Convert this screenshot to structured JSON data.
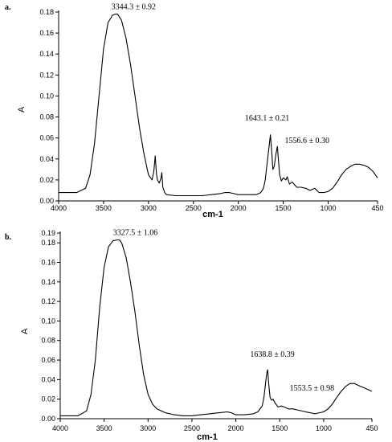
{
  "chart_data": [
    {
      "type": "line",
      "panel_label": "a.",
      "xlabel": "cm-1",
      "ylabel": "A",
      "xlim": [
        4000,
        450
      ],
      "ylim": [
        0,
        0.18
      ],
      "x_reversed": true,
      "grid": false,
      "xticks": [
        "4000",
        "3500",
        "3000",
        "2500",
        "2000",
        "1500",
        "1000",
        "450"
      ],
      "xtick_values": [
        4000,
        3500,
        3000,
        2500,
        2000,
        1500,
        1000,
        450
      ],
      "yticks": [
        "0.00",
        "0.02",
        "0.04",
        "0.06",
        "0.08",
        "0.10",
        "0.12",
        "0.14",
        "0.16",
        "0.18"
      ],
      "ytick_values": [
        0,
        0.02,
        0.04,
        0.06,
        0.08,
        0.1,
        0.12,
        0.14,
        0.16,
        0.18
      ],
      "annotations": [
        {
          "text": "3344.3 ± 0.92",
          "x": 3344.3,
          "y": 0.178
        },
        {
          "text": "1643.1 ± 0.21",
          "x": 1643.1,
          "y": 0.063
        },
        {
          "text": "1556.6 ± 0.30",
          "x": 1556.6,
          "y": 0.052
        }
      ],
      "series": [
        {
          "x": [
            4000,
            3800,
            3700,
            3650,
            3600,
            3550,
            3500,
            3450,
            3400,
            3370,
            3344,
            3300,
            3250,
            3200,
            3150,
            3100,
            3050,
            3000,
            2960,
            2940,
            2925,
            2910,
            2900,
            2880,
            2860,
            2852,
            2840,
            2820,
            2800,
            2700,
            2600,
            2500,
            2400,
            2300,
            2200,
            2150,
            2100,
            2050,
            2000,
            1900,
            1800,
            1750,
            1720,
            1700,
            1680,
            1660,
            1643,
            1630,
            1615,
            1600,
            1580,
            1565,
            1556,
            1540,
            1520,
            1500,
            1470,
            1455,
            1430,
            1400,
            1350,
            1300,
            1250,
            1200,
            1150,
            1100,
            1050,
            1000,
            950,
            900,
            850,
            800,
            750,
            700,
            650,
            600,
            550,
            500,
            450
          ],
          "y": [
            0.008,
            0.008,
            0.012,
            0.025,
            0.055,
            0.1,
            0.145,
            0.17,
            0.177,
            0.178,
            0.178,
            0.172,
            0.155,
            0.13,
            0.1,
            0.07,
            0.045,
            0.025,
            0.02,
            0.028,
            0.043,
            0.025,
            0.02,
            0.017,
            0.022,
            0.027,
            0.013,
            0.008,
            0.006,
            0.005,
            0.005,
            0.005,
            0.005,
            0.006,
            0.007,
            0.008,
            0.008,
            0.007,
            0.006,
            0.006,
            0.006,
            0.008,
            0.012,
            0.02,
            0.035,
            0.05,
            0.063,
            0.05,
            0.03,
            0.033,
            0.045,
            0.052,
            0.042,
            0.025,
            0.019,
            0.022,
            0.02,
            0.023,
            0.016,
            0.018,
            0.013,
            0.013,
            0.012,
            0.01,
            0.012,
            0.008,
            0.008,
            0.009,
            0.012,
            0.018,
            0.025,
            0.03,
            0.033,
            0.035,
            0.035,
            0.034,
            0.032,
            0.028,
            0.022
          ]
        }
      ]
    },
    {
      "type": "line",
      "panel_label": "b.",
      "xlabel": "cm-1",
      "ylabel": "A",
      "xlim": [
        4000,
        450
      ],
      "ylim": [
        0,
        0.19
      ],
      "x_reversed": true,
      "grid": false,
      "xticks": [
        "4000",
        "3500",
        "3000",
        "2500",
        "2000",
        "1500",
        "1000",
        "450"
      ],
      "xtick_values": [
        4000,
        3500,
        3000,
        2500,
        2000,
        1500,
        1000,
        450
      ],
      "yticks": [
        "0.00",
        "0.02",
        "0.04",
        "0.06",
        "0.08",
        "0.10",
        "0.12",
        "0.14",
        "0.16",
        "0.18",
        "0.19"
      ],
      "ytick_values": [
        0,
        0.02,
        0.04,
        0.06,
        0.08,
        0.1,
        0.12,
        0.14,
        0.16,
        0.18,
        0.19
      ],
      "annotations": [
        {
          "text": "3327.5 ± 1.06",
          "x": 3327.5,
          "y": 0.183
        },
        {
          "text": "1638.8 ± 0.39",
          "x": 1638.8,
          "y": 0.05
        },
        {
          "text": "1553.5 ± 0.98",
          "x": 1553.5,
          "y": 0.024
        }
      ],
      "series": [
        {
          "x": [
            4000,
            3800,
            3700,
            3650,
            3600,
            3550,
            3500,
            3450,
            3400,
            3350,
            3327,
            3300,
            3250,
            3200,
            3150,
            3100,
            3050,
            3000,
            2950,
            2900,
            2850,
            2800,
            2700,
            2600,
            2500,
            2400,
            2300,
            2200,
            2100,
            2050,
            2000,
            1900,
            1800,
            1750,
            1700,
            1680,
            1660,
            1645,
            1638,
            1625,
            1610,
            1595,
            1575,
            1553,
            1520,
            1480,
            1450,
            1400,
            1350,
            1300,
            1200,
            1100,
            1000,
            950,
            900,
            850,
            800,
            750,
            700,
            650,
            600,
            550,
            500,
            450
          ],
          "y": [
            0.003,
            0.003,
            0.008,
            0.025,
            0.06,
            0.115,
            0.155,
            0.176,
            0.182,
            0.183,
            0.183,
            0.18,
            0.165,
            0.14,
            0.11,
            0.075,
            0.045,
            0.025,
            0.015,
            0.01,
            0.008,
            0.006,
            0.004,
            0.003,
            0.003,
            0.004,
            0.005,
            0.006,
            0.007,
            0.006,
            0.004,
            0.004,
            0.005,
            0.007,
            0.013,
            0.022,
            0.038,
            0.048,
            0.05,
            0.035,
            0.022,
            0.019,
            0.02,
            0.016,
            0.012,
            0.013,
            0.012,
            0.01,
            0.01,
            0.009,
            0.007,
            0.005,
            0.007,
            0.01,
            0.015,
            0.022,
            0.028,
            0.033,
            0.036,
            0.036,
            0.034,
            0.032,
            0.03,
            0.028
          ]
        }
      ]
    }
  ]
}
